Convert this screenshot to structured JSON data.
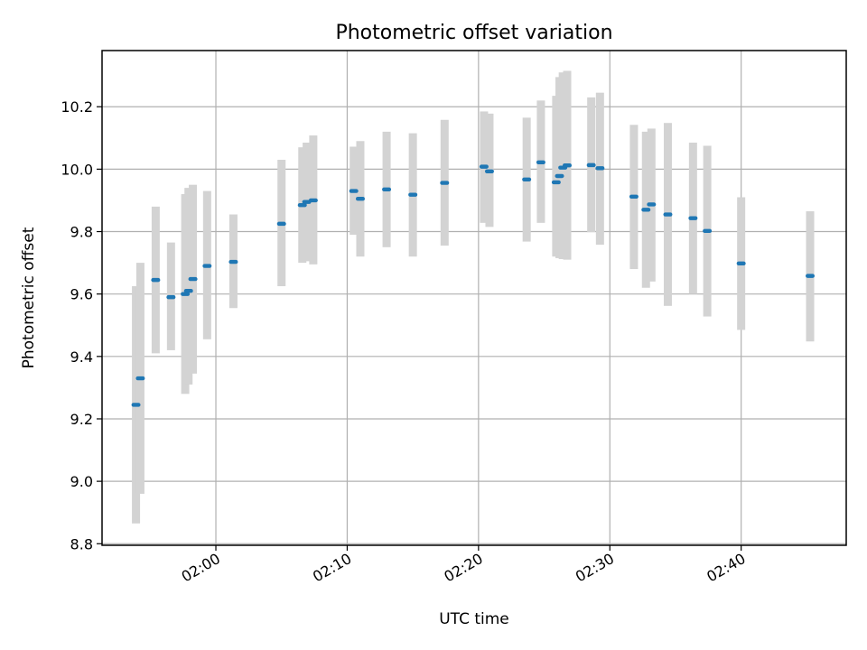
{
  "chart_data": {
    "type": "scatter",
    "title": "Photometric offset variation",
    "xlabel": "UTC time",
    "ylabel": "Photometric offset",
    "xlim": [
      "01:51:20",
      "02:48:00"
    ],
    "ylim": [
      8.795,
      10.38
    ],
    "x_ticks": [
      "02:00",
      "02:10",
      "02:20",
      "02:30",
      "02:40"
    ],
    "y_ticks": [
      "8.8",
      "9.0",
      "9.2",
      "9.4",
      "9.6",
      "9.8",
      "10.0",
      "10.2"
    ],
    "grid": true,
    "colors": {
      "points": "#1f77b4",
      "error_bars": "#d3d3d3",
      "grid": "#b0b0b0"
    },
    "points": [
      {
        "x": "01:53:55",
        "y": 9.245,
        "ylow": 8.865,
        "yhigh": 9.625
      },
      {
        "x": "01:54:15",
        "y": 9.33,
        "ylow": 8.96,
        "yhigh": 9.7
      },
      {
        "x": "01:55:25",
        "y": 9.645,
        "ylow": 9.41,
        "yhigh": 9.88
      },
      {
        "x": "01:56:35",
        "y": 9.59,
        "ylow": 9.42,
        "yhigh": 9.765
      },
      {
        "x": "01:57:40",
        "y": 9.6,
        "ylow": 9.28,
        "yhigh": 9.92
      },
      {
        "x": "01:57:55",
        "y": 9.61,
        "ylow": 9.31,
        "yhigh": 9.94
      },
      {
        "x": "01:58:15",
        "y": 9.648,
        "ylow": 9.345,
        "yhigh": 9.95
      },
      {
        "x": "01:59:20",
        "y": 9.69,
        "ylow": 9.455,
        "yhigh": 9.93
      },
      {
        "x": "02:01:20",
        "y": 9.703,
        "ylow": 9.555,
        "yhigh": 9.855
      },
      {
        "x": "02:05:00",
        "y": 9.825,
        "ylow": 9.625,
        "yhigh": 10.03
      },
      {
        "x": "02:06:35",
        "y": 9.885,
        "ylow": 9.7,
        "yhigh": 10.07
      },
      {
        "x": "02:06:55",
        "y": 9.895,
        "ylow": 9.705,
        "yhigh": 10.085
      },
      {
        "x": "02:07:25",
        "y": 9.9,
        "ylow": 9.695,
        "yhigh": 10.108
      },
      {
        "x": "02:10:30",
        "y": 9.93,
        "ylow": 9.79,
        "yhigh": 10.072
      },
      {
        "x": "02:11:00",
        "y": 9.905,
        "ylow": 9.72,
        "yhigh": 10.09
      },
      {
        "x": "02:13:00",
        "y": 9.935,
        "ylow": 9.75,
        "yhigh": 10.12
      },
      {
        "x": "02:15:00",
        "y": 9.918,
        "ylow": 9.72,
        "yhigh": 10.115
      },
      {
        "x": "02:17:25",
        "y": 9.956,
        "ylow": 9.755,
        "yhigh": 10.158
      },
      {
        "x": "02:20:25",
        "y": 10.008,
        "ylow": 9.828,
        "yhigh": 10.185
      },
      {
        "x": "02:20:50",
        "y": 9.993,
        "ylow": 9.815,
        "yhigh": 10.178
      },
      {
        "x": "02:23:40",
        "y": 9.967,
        "ylow": 9.768,
        "yhigh": 10.165
      },
      {
        "x": "02:24:45",
        "y": 10.022,
        "ylow": 9.828,
        "yhigh": 10.22
      },
      {
        "x": "02:25:55",
        "y": 9.958,
        "ylow": 9.72,
        "yhigh": 10.235
      },
      {
        "x": "02:26:10",
        "y": 9.978,
        "ylow": 9.715,
        "yhigh": 10.295
      },
      {
        "x": "02:26:25",
        "y": 10.005,
        "ylow": 9.712,
        "yhigh": 10.31
      },
      {
        "x": "02:26:45",
        "y": 10.012,
        "ylow": 9.71,
        "yhigh": 10.315
      },
      {
        "x": "02:28:35",
        "y": 10.013,
        "ylow": 9.798,
        "yhigh": 10.23
      },
      {
        "x": "02:29:15",
        "y": 10.003,
        "ylow": 9.758,
        "yhigh": 10.245
      },
      {
        "x": "02:31:50",
        "y": 9.912,
        "ylow": 9.68,
        "yhigh": 10.142
      },
      {
        "x": "02:32:45",
        "y": 9.87,
        "ylow": 9.62,
        "yhigh": 10.12
      },
      {
        "x": "02:33:10",
        "y": 9.887,
        "ylow": 9.64,
        "yhigh": 10.13
      },
      {
        "x": "02:34:25",
        "y": 9.855,
        "ylow": 9.562,
        "yhigh": 10.148
      },
      {
        "x": "02:36:20",
        "y": 9.843,
        "ylow": 9.6,
        "yhigh": 10.085
      },
      {
        "x": "02:37:25",
        "y": 9.802,
        "ylow": 9.528,
        "yhigh": 10.075
      },
      {
        "x": "02:40:00",
        "y": 9.698,
        "ylow": 9.485,
        "yhigh": 9.91
      },
      {
        "x": "02:45:15",
        "y": 9.658,
        "ylow": 9.448,
        "yhigh": 9.865
      }
    ]
  }
}
